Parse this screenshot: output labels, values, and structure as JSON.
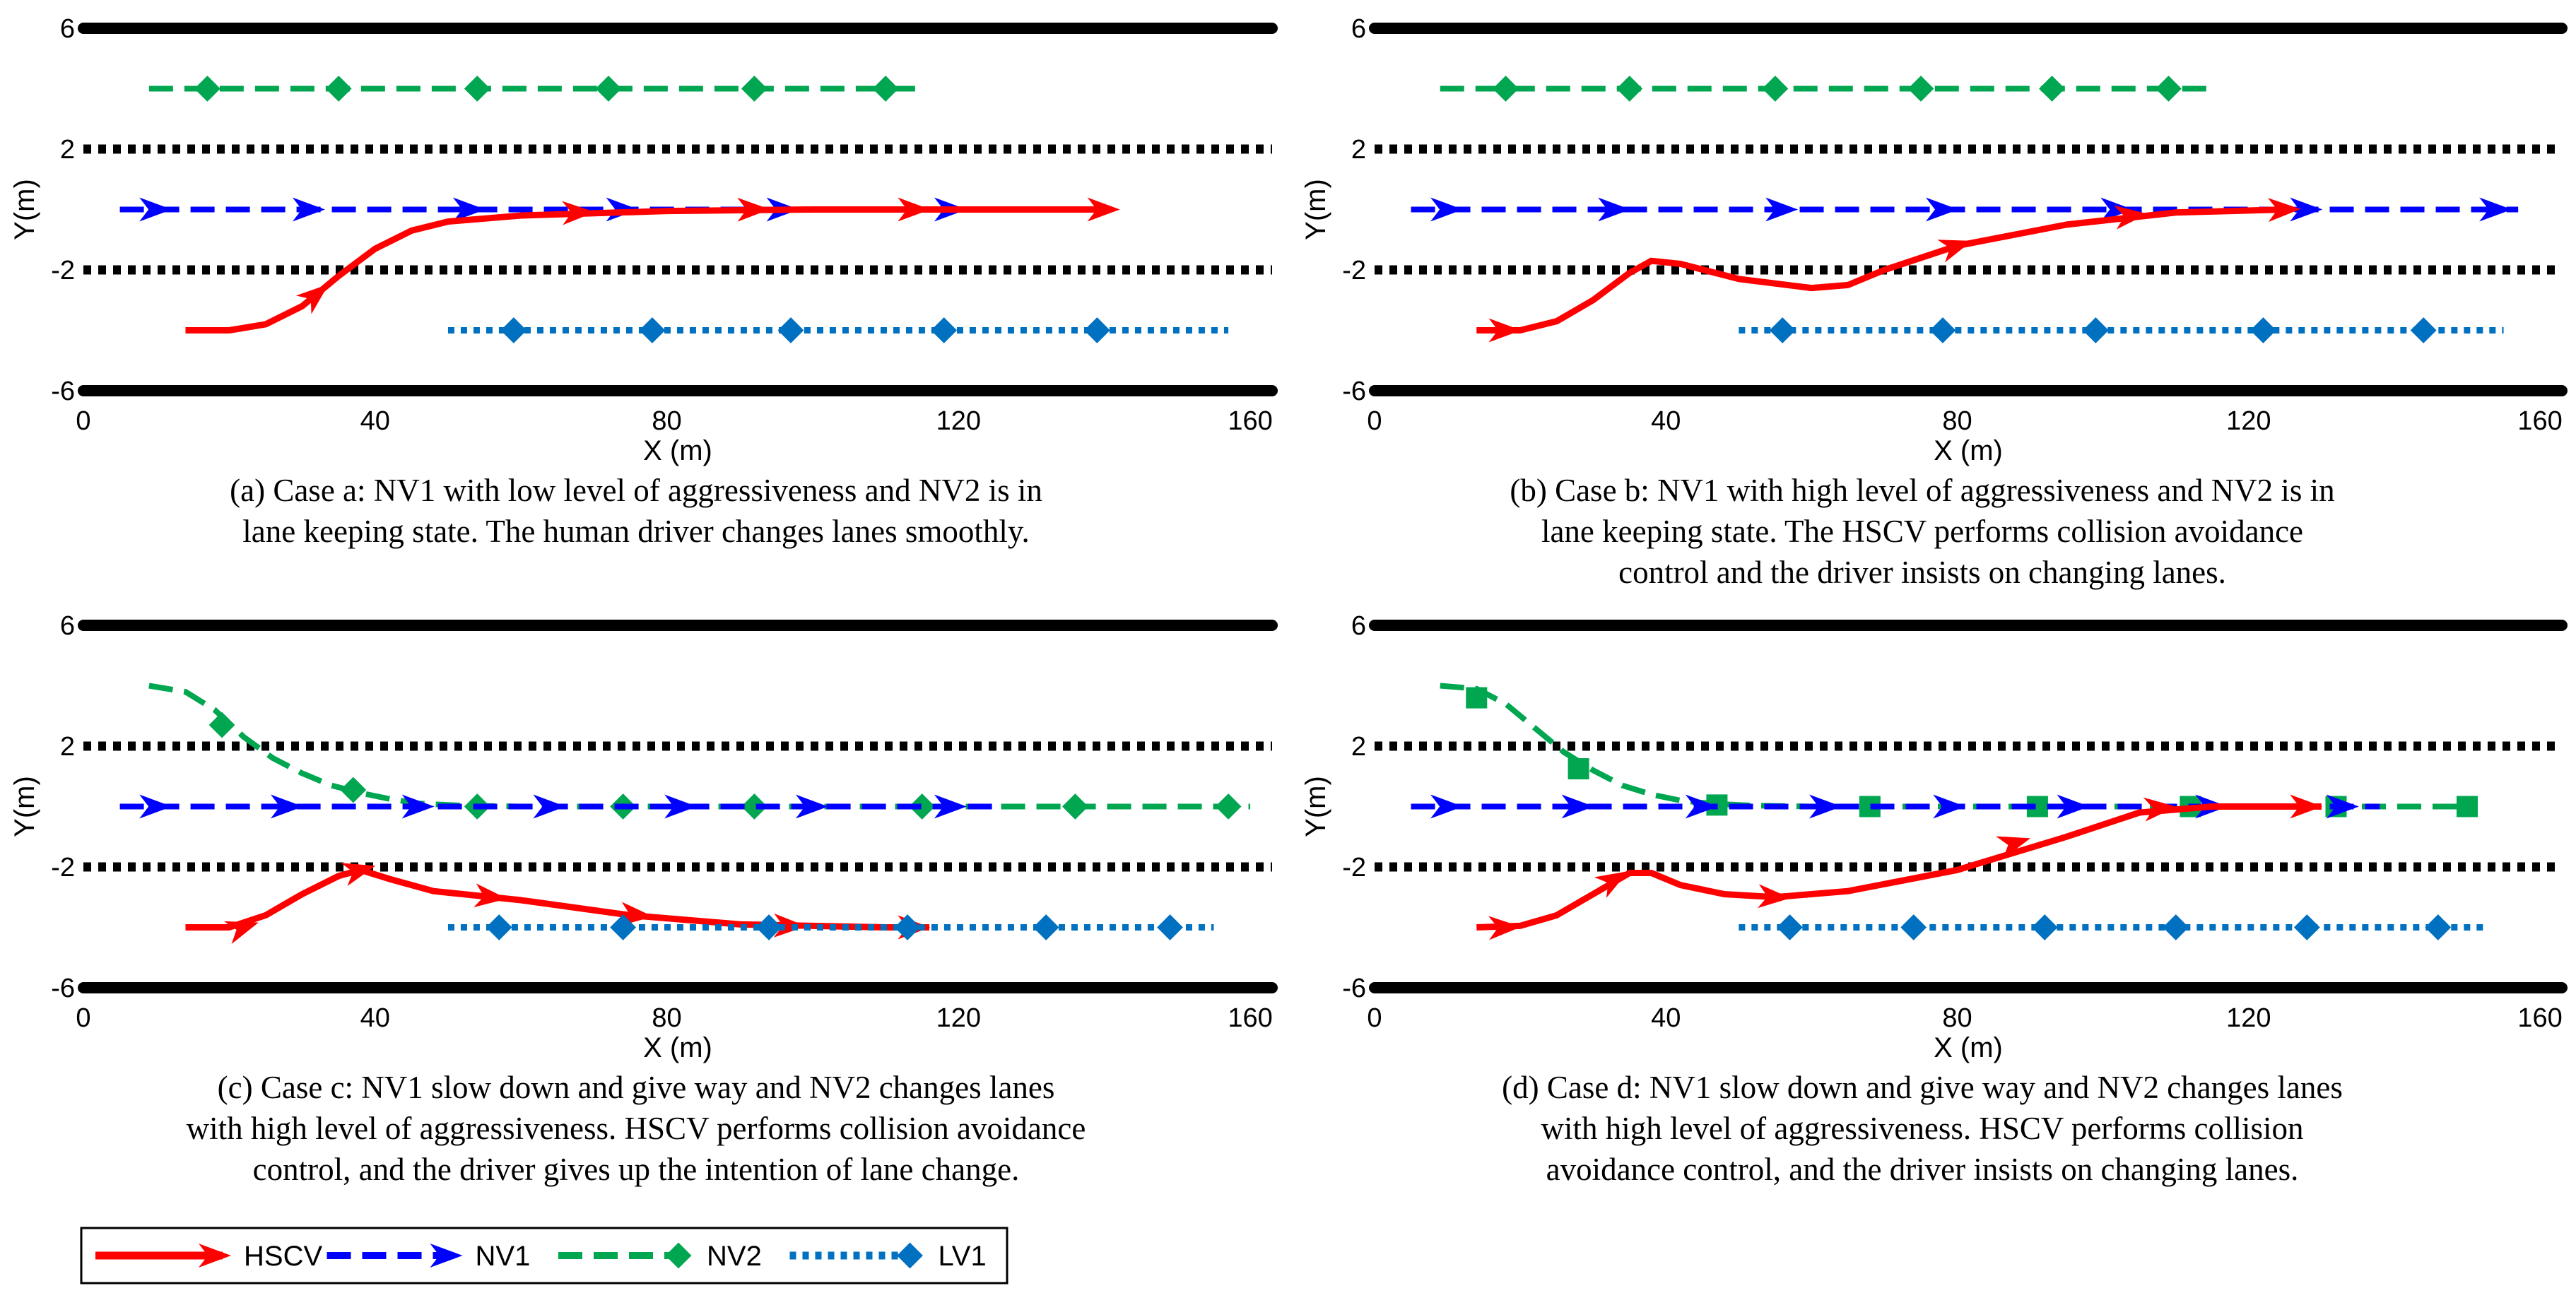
{
  "colors": {
    "hscv": "#ff0000",
    "nv1": "#0000ff",
    "nv2": "#00a650",
    "lv1": "#0070c0",
    "lane": "#000000"
  },
  "legend": [
    {
      "key": "hscv",
      "label": "HSCV",
      "marker": "arrow",
      "style": "solid"
    },
    {
      "key": "nv1",
      "label": "NV1",
      "marker": "arrow",
      "style": "dash"
    },
    {
      "key": "nv2",
      "label": "NV2",
      "marker": "diamond",
      "style": "dash"
    },
    {
      "key": "lv1",
      "label": "LV1",
      "marker": "diamond",
      "style": "dot"
    }
  ],
  "chart_data": [
    {
      "id": "a",
      "type": "line",
      "xlabel": "X (m)",
      "ylabel": "Y(m)",
      "xlim": [
        0,
        163
      ],
      "ylim": [
        -6,
        6
      ],
      "xticks": [
        0,
        40,
        80,
        120,
        160
      ],
      "yticks": [
        6,
        2,
        -2,
        -6
      ],
      "lane_lines": [
        {
          "y": 6,
          "style": "solid"
        },
        {
          "y": 2,
          "style": "dot"
        },
        {
          "y": -2,
          "style": "dot"
        },
        {
          "y": -6,
          "style": "solid"
        }
      ],
      "caption": [
        "(a)  Case a: NV1 with low level of aggressiveness and NV2 is in",
        "lane keeping state. The human driver changes lanes smoothly."
      ],
      "series": [
        {
          "name": "NV2",
          "key": "nv2",
          "marker": "diamond",
          "style": "dash",
          "x": [
            9,
            115
          ],
          "y": [
            4,
            4
          ],
          "markers": [
            [
              17,
              4
            ],
            [
              35,
              4
            ],
            [
              54,
              4
            ],
            [
              72,
              4
            ],
            [
              92,
              4
            ],
            [
              110,
              4
            ]
          ]
        },
        {
          "name": "NV1",
          "key": "nv1",
          "marker": "arrow",
          "style": "dash",
          "x": [
            5,
            133
          ],
          "y": [
            0,
            0
          ],
          "markers": [
            [
              10,
              0
            ],
            [
              31,
              0
            ],
            [
              53,
              0
            ],
            [
              74,
              0
            ],
            [
              96,
              0
            ],
            [
              119,
              0
            ]
          ]
        },
        {
          "name": "HSCV",
          "key": "hscv",
          "marker": "arrow",
          "style": "solid",
          "x": [
            14,
            20,
            25,
            30,
            35,
            40,
            45,
            50,
            60,
            80,
            100,
            120,
            140
          ],
          "y": [
            -4,
            -4,
            -3.8,
            -3.2,
            -2.2,
            -1.3,
            -0.7,
            -0.4,
            -0.2,
            -0.05,
            0,
            0,
            0
          ],
          "markers": [
            [
              32,
              -2.8
            ],
            [
              68,
              -0.1
            ],
            [
              92,
              0
            ],
            [
              114,
              0
            ],
            [
              140,
              0
            ]
          ]
        },
        {
          "name": "LV1",
          "key": "lv1",
          "marker": "diamond",
          "style": "dot",
          "x": [
            50,
            157
          ],
          "y": [
            -4,
            -4
          ],
          "markers": [
            [
              59,
              -4
            ],
            [
              78,
              -4
            ],
            [
              97,
              -4
            ],
            [
              118,
              -4
            ],
            [
              139,
              -4
            ]
          ]
        }
      ]
    },
    {
      "id": "b",
      "type": "line",
      "xlabel": "X (m)",
      "ylabel": "Y(m)",
      "xlim": [
        0,
        163
      ],
      "ylim": [
        -6,
        6
      ],
      "xticks": [
        0,
        40,
        80,
        120,
        160
      ],
      "yticks": [
        6,
        2,
        -2,
        -6
      ],
      "lane_lines": [
        {
          "y": 6,
          "style": "solid"
        },
        {
          "y": 2,
          "style": "dot"
        },
        {
          "y": -2,
          "style": "dot"
        },
        {
          "y": -6,
          "style": "solid"
        }
      ],
      "caption": [
        "(b)  Case b: NV1 with high level of aggressiveness and NV2 is in",
        "lane keeping state. The HSCV performs collision avoidance",
        "control and the driver insists on changing lanes."
      ],
      "series": [
        {
          "name": "NV2",
          "key": "nv2",
          "marker": "diamond",
          "style": "dash",
          "x": [
            9,
            115
          ],
          "y": [
            4,
            4
          ],
          "markers": [
            [
              18,
              4
            ],
            [
              35,
              4
            ],
            [
              55,
              4
            ],
            [
              75,
              4
            ],
            [
              93,
              4
            ],
            [
              109,
              4
            ]
          ]
        },
        {
          "name": "NV1",
          "key": "nv1",
          "marker": "arrow",
          "style": "dash",
          "x": [
            5,
            157
          ],
          "y": [
            0,
            0
          ],
          "markers": [
            [
              10,
              0
            ],
            [
              33,
              0
            ],
            [
              56,
              0
            ],
            [
              78,
              0
            ],
            [
              102,
              0
            ],
            [
              128,
              0
            ],
            [
              154,
              0
            ]
          ]
        },
        {
          "name": "HSCV",
          "key": "hscv",
          "marker": "arrow",
          "style": "solid",
          "x": [
            14,
            20,
            25,
            30,
            35,
            38,
            42,
            50,
            60,
            65,
            70,
            80,
            95,
            110,
            125
          ],
          "y": [
            -4,
            -4,
            -3.7,
            -3,
            -2.1,
            -1.7,
            -1.8,
            -2.3,
            -2.6,
            -2.5,
            -2,
            -1.2,
            -0.5,
            -0.1,
            0
          ],
          "markers": [
            [
              18,
              -4
            ],
            [
              80,
              -1.2
            ],
            [
              104,
              -0.2
            ],
            [
              125,
              0
            ]
          ]
        },
        {
          "name": "LV1",
          "key": "lv1",
          "marker": "diamond",
          "style": "dot",
          "x": [
            50,
            155
          ],
          "y": [
            -4,
            -4
          ],
          "markers": [
            [
              56,
              -4
            ],
            [
              78,
              -4
            ],
            [
              99,
              -4
            ],
            [
              122,
              -4
            ],
            [
              144,
              -4
            ]
          ]
        }
      ]
    },
    {
      "id": "c",
      "type": "line",
      "xlabel": "X (m)",
      "ylabel": "Y(m)",
      "xlim": [
        0,
        163
      ],
      "ylim": [
        -6,
        6
      ],
      "xticks": [
        0,
        40,
        80,
        120,
        160
      ],
      "yticks": [
        6,
        2,
        -2,
        -6
      ],
      "lane_lines": [
        {
          "y": 6,
          "style": "solid"
        },
        {
          "y": 2,
          "style": "dot"
        },
        {
          "y": -2,
          "style": "dot"
        },
        {
          "y": -6,
          "style": "solid"
        }
      ],
      "caption": [
        "(c)  Case c: NV1 slow down and give way and NV2 changes lanes",
        "with high level of aggressiveness. HSCV performs collision avoidance",
        "control, and the driver gives up the intention of lane change."
      ],
      "series": [
        {
          "name": "NV2",
          "key": "nv2",
          "marker": "diamond",
          "style": "dash",
          "x": [
            9,
            14,
            18,
            22,
            26,
            30,
            34,
            38,
            42,
            46,
            52,
            60,
            80,
            100,
            130,
            160
          ],
          "y": [
            4,
            3.8,
            3.2,
            2.3,
            1.6,
            1.1,
            0.7,
            0.45,
            0.25,
            0.1,
            0.03,
            0,
            0,
            0,
            0,
            0
          ],
          "markers": [
            [
              19,
              2.7
            ],
            [
              37,
              0.55
            ],
            [
              54,
              0
            ],
            [
              74,
              0
            ],
            [
              92,
              0
            ],
            [
              115,
              0
            ],
            [
              136,
              0
            ],
            [
              157,
              0
            ]
          ]
        },
        {
          "name": "NV1",
          "key": "nv1",
          "marker": "arrow",
          "style": "dash",
          "x": [
            5,
            125
          ],
          "y": [
            0,
            0
          ],
          "markers": [
            [
              10,
              0
            ],
            [
              28,
              0
            ],
            [
              46,
              0
            ],
            [
              64,
              0
            ],
            [
              82,
              0
            ],
            [
              100,
              0
            ],
            [
              119,
              0
            ]
          ]
        },
        {
          "name": "HSCV",
          "key": "hscv",
          "marker": "arrow",
          "style": "solid",
          "x": [
            14,
            20,
            25,
            30,
            35,
            38,
            42,
            48,
            60,
            75,
            90,
            110,
            116
          ],
          "y": [
            -4,
            -4,
            -3.6,
            -2.9,
            -2.3,
            -2.1,
            -2.4,
            -2.8,
            -3.1,
            -3.6,
            -3.9,
            -4,
            -4
          ],
          "markers": [
            [
              22,
              -4
            ],
            [
              38,
              -2.1
            ],
            [
              56,
              -3
            ],
            [
              76,
              -3.6
            ],
            [
              97,
              -3.95
            ],
            [
              114,
              -4
            ]
          ]
        },
        {
          "name": "LV1",
          "key": "lv1",
          "marker": "diamond",
          "style": "dot",
          "x": [
            50,
            155
          ],
          "y": [
            -4,
            -4
          ],
          "markers": [
            [
              57,
              -4
            ],
            [
              74,
              -4
            ],
            [
              94,
              -4
            ],
            [
              113,
              -4
            ],
            [
              132,
              -4
            ],
            [
              149,
              -4
            ]
          ]
        }
      ]
    },
    {
      "id": "d",
      "type": "line",
      "xlabel": "X (m)",
      "ylabel": "Y(m)",
      "xlim": [
        0,
        163
      ],
      "ylim": [
        -6,
        6
      ],
      "xticks": [
        0,
        40,
        80,
        120,
        160
      ],
      "yticks": [
        6,
        2,
        -2,
        -6
      ],
      "lane_lines": [
        {
          "y": 6,
          "style": "solid"
        },
        {
          "y": 2,
          "style": "dot"
        },
        {
          "y": -2,
          "style": "dot"
        },
        {
          "y": -6,
          "style": "solid"
        }
      ],
      "caption": [
        "(d)  Case d: NV1 slow down and give way and NV2 changes lanes",
        "with high level of aggressiveness. HSCV performs collision",
        "avoidance control, and the driver insists on changing lanes."
      ],
      "series": [
        {
          "name": "NV2",
          "key": "nv2",
          "marker": "square",
          "style": "dash",
          "x": [
            9,
            14,
            18,
            22,
            26,
            30,
            34,
            38,
            42,
            46,
            52,
            60,
            80,
            110,
            150
          ],
          "y": [
            4,
            3.9,
            3.4,
            2.6,
            1.8,
            1.2,
            0.7,
            0.4,
            0.2,
            0.1,
            0.03,
            0,
            0,
            0,
            0
          ],
          "markers": [
            [
              14,
              3.6
            ],
            [
              28,
              1.25
            ],
            [
              47,
              0.05
            ],
            [
              68,
              0
            ],
            [
              91,
              0
            ],
            [
              112,
              0
            ],
            [
              132,
              0
            ],
            [
              150,
              0
            ]
          ]
        },
        {
          "name": "NV1",
          "key": "nv1",
          "marker": "arrow",
          "style": "dash",
          "x": [
            5,
            138
          ],
          "y": [
            0,
            0
          ],
          "markers": [
            [
              10,
              0
            ],
            [
              28,
              0
            ],
            [
              45,
              0
            ],
            [
              62,
              0
            ],
            [
              79,
              0
            ],
            [
              96,
              0
            ],
            [
              115,
              0
            ],
            [
              133,
              0
            ]
          ]
        },
        {
          "name": "HSCV",
          "key": "hscv",
          "marker": "arrow",
          "style": "solid",
          "x": [
            14,
            20,
            25,
            30,
            35,
            38,
            42,
            48,
            55,
            65,
            80,
            95,
            105,
            115,
            130
          ],
          "y": [
            -4,
            -3.95,
            -3.6,
            -2.9,
            -2.2,
            -2.2,
            -2.6,
            -2.9,
            -3,
            -2.8,
            -2.1,
            -1,
            -0.2,
            0,
            0
          ],
          "markers": [
            [
              18,
              -4
            ],
            [
              33,
              -2.4
            ],
            [
              55,
              -3
            ],
            [
              88,
              -1.2
            ],
            [
              108,
              -0.05
            ],
            [
              128,
              0
            ]
          ]
        },
        {
          "name": "LV1",
          "key": "lv1",
          "marker": "diamond",
          "style": "dot",
          "x": [
            50,
            153
          ],
          "y": [
            -4,
            -4
          ],
          "markers": [
            [
              57,
              -4
            ],
            [
              74,
              -4
            ],
            [
              92,
              -4
            ],
            [
              110,
              -4
            ],
            [
              128,
              -4
            ],
            [
              146,
              -4
            ]
          ]
        }
      ]
    }
  ]
}
